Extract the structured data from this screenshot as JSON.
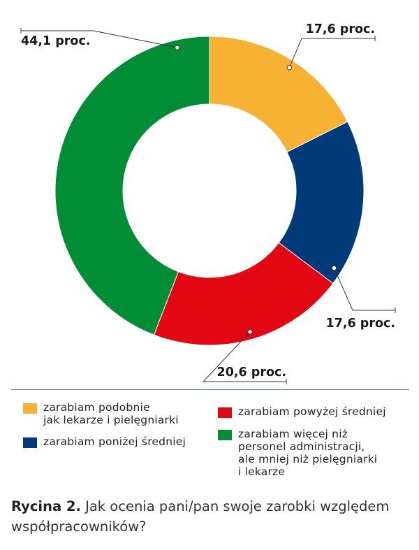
{
  "chart_data": {
    "type": "pie",
    "donut": true,
    "slices": [
      {
        "label": "zarabiam podobnie jak lekarze i pielęgniarki",
        "value": 17.6,
        "value_label": "17,6 proc.",
        "color": "#f7b234"
      },
      {
        "label": "zarabiam poniżej średniej",
        "value": 17.6,
        "value_label": "17,6 proc.",
        "color": "#003a78"
      },
      {
        "label": "zarabiam powyżej średniej",
        "value": 20.6,
        "value_label": "20,6 proc.",
        "color": "#e30613"
      },
      {
        "label": "zarabiam więcej niż personel administracji, ale mniej niż pielęgniarki i lekarze",
        "value": 44.1,
        "value_label": "44,1 proc.",
        "color": "#008d36"
      }
    ]
  },
  "legend": {
    "item_1": {
      "text": "zarabiam podobnie\njak lekarze i pielęgniarki",
      "color": "#f7b234"
    },
    "item_2": {
      "text": "zarabiam poniżej średniej",
      "color": "#003a78"
    },
    "item_3": {
      "text": "zarabiam powyżej średniej",
      "color": "#e30613"
    },
    "item_4": {
      "text": "zarabiam więcej niż\npersonel administracji,\nale mniej niż pielęgniarki\ni lekarze",
      "color": "#008d36"
    }
  },
  "caption": {
    "label": "Rycina 2.",
    "text": " Jak ocenia pani/pan swoje zarobki względem współpracowników?"
  }
}
